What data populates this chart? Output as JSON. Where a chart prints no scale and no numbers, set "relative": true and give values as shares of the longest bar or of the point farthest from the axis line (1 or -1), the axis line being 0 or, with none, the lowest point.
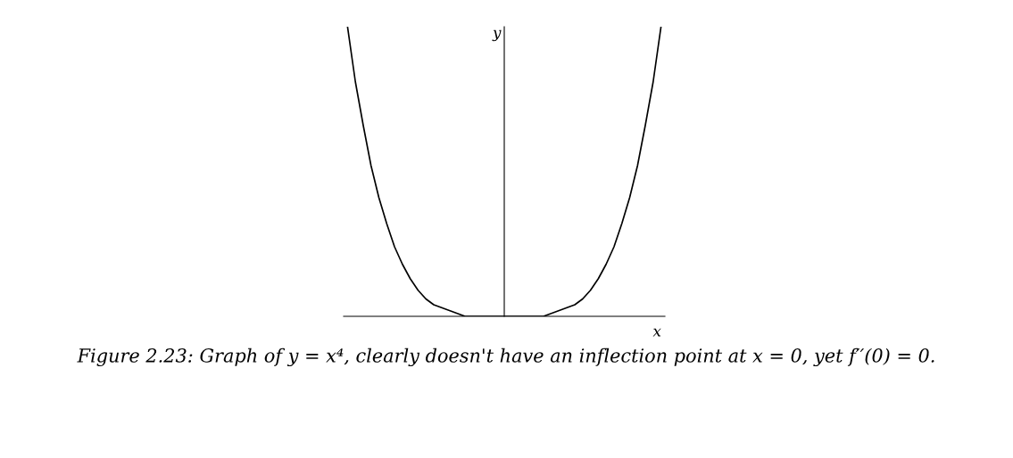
{
  "chart_data": {
    "type": "line",
    "relative": true,
    "xlabel": "x",
    "ylabel": "y",
    "color": "#000000",
    "categories": [
      null,
      null,
      null,
      null,
      null,
      null,
      null,
      null,
      null,
      null,
      null,
      null,
      null,
      null,
      null,
      null,
      null,
      null,
      null,
      null,
      null,
      null,
      null,
      null,
      null,
      null,
      null,
      null,
      null,
      null,
      null,
      null,
      null,
      null,
      null,
      null,
      null,
      null,
      null,
      null,
      null
    ],
    "values": [
      1,
      0.81,
      0.66,
      0.52,
      0.41,
      0.32,
      0.24,
      0.18,
      0.13,
      0.09,
      0.06,
      0.04,
      0.03,
      0.02,
      0.01,
      0,
      0,
      0,
      0,
      0,
      0,
      0,
      0,
      0,
      0,
      0,
      0.01,
      0.02,
      0.03,
      0.04,
      0.06,
      0.09,
      0.13,
      0.18,
      0.24,
      0.32,
      0.41,
      0.52,
      0.66,
      0.81,
      1
    ],
    "annotations": [
      "Figure 2.23: Graph of y = x⁴, clearly doesn't have an inflection point at x = 0, yet f′′(0) = 0."
    ]
  }
}
